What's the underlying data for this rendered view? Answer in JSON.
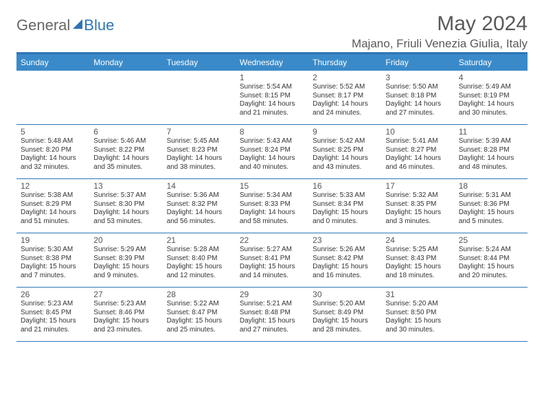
{
  "logo": {
    "part1": "General",
    "part2": "Blue"
  },
  "title": "May 2024",
  "location": "Majano, Friuli Venezia Giulia, Italy",
  "colors": {
    "header_bar": "#3a8ac9",
    "accent": "#2e75b6",
    "text": "#333333",
    "title_text": "#595959"
  },
  "day_names": [
    "Sunday",
    "Monday",
    "Tuesday",
    "Wednesday",
    "Thursday",
    "Friday",
    "Saturday"
  ],
  "weeks": [
    [
      null,
      null,
      null,
      {
        "n": "1",
        "sr": "5:54 AM",
        "ss": "8:15 PM",
        "dl": "14 hours and 21 minutes."
      },
      {
        "n": "2",
        "sr": "5:52 AM",
        "ss": "8:17 PM",
        "dl": "14 hours and 24 minutes."
      },
      {
        "n": "3",
        "sr": "5:50 AM",
        "ss": "8:18 PM",
        "dl": "14 hours and 27 minutes."
      },
      {
        "n": "4",
        "sr": "5:49 AM",
        "ss": "8:19 PM",
        "dl": "14 hours and 30 minutes."
      }
    ],
    [
      {
        "n": "5",
        "sr": "5:48 AM",
        "ss": "8:20 PM",
        "dl": "14 hours and 32 minutes."
      },
      {
        "n": "6",
        "sr": "5:46 AM",
        "ss": "8:22 PM",
        "dl": "14 hours and 35 minutes."
      },
      {
        "n": "7",
        "sr": "5:45 AM",
        "ss": "8:23 PM",
        "dl": "14 hours and 38 minutes."
      },
      {
        "n": "8",
        "sr": "5:43 AM",
        "ss": "8:24 PM",
        "dl": "14 hours and 40 minutes."
      },
      {
        "n": "9",
        "sr": "5:42 AM",
        "ss": "8:25 PM",
        "dl": "14 hours and 43 minutes."
      },
      {
        "n": "10",
        "sr": "5:41 AM",
        "ss": "8:27 PM",
        "dl": "14 hours and 46 minutes."
      },
      {
        "n": "11",
        "sr": "5:39 AM",
        "ss": "8:28 PM",
        "dl": "14 hours and 48 minutes."
      }
    ],
    [
      {
        "n": "12",
        "sr": "5:38 AM",
        "ss": "8:29 PM",
        "dl": "14 hours and 51 minutes."
      },
      {
        "n": "13",
        "sr": "5:37 AM",
        "ss": "8:30 PM",
        "dl": "14 hours and 53 minutes."
      },
      {
        "n": "14",
        "sr": "5:36 AM",
        "ss": "8:32 PM",
        "dl": "14 hours and 56 minutes."
      },
      {
        "n": "15",
        "sr": "5:34 AM",
        "ss": "8:33 PM",
        "dl": "14 hours and 58 minutes."
      },
      {
        "n": "16",
        "sr": "5:33 AM",
        "ss": "8:34 PM",
        "dl": "15 hours and 0 minutes."
      },
      {
        "n": "17",
        "sr": "5:32 AM",
        "ss": "8:35 PM",
        "dl": "15 hours and 3 minutes."
      },
      {
        "n": "18",
        "sr": "5:31 AM",
        "ss": "8:36 PM",
        "dl": "15 hours and 5 minutes."
      }
    ],
    [
      {
        "n": "19",
        "sr": "5:30 AM",
        "ss": "8:38 PM",
        "dl": "15 hours and 7 minutes."
      },
      {
        "n": "20",
        "sr": "5:29 AM",
        "ss": "8:39 PM",
        "dl": "15 hours and 9 minutes."
      },
      {
        "n": "21",
        "sr": "5:28 AM",
        "ss": "8:40 PM",
        "dl": "15 hours and 12 minutes."
      },
      {
        "n": "22",
        "sr": "5:27 AM",
        "ss": "8:41 PM",
        "dl": "15 hours and 14 minutes."
      },
      {
        "n": "23",
        "sr": "5:26 AM",
        "ss": "8:42 PM",
        "dl": "15 hours and 16 minutes."
      },
      {
        "n": "24",
        "sr": "5:25 AM",
        "ss": "8:43 PM",
        "dl": "15 hours and 18 minutes."
      },
      {
        "n": "25",
        "sr": "5:24 AM",
        "ss": "8:44 PM",
        "dl": "15 hours and 20 minutes."
      }
    ],
    [
      {
        "n": "26",
        "sr": "5:23 AM",
        "ss": "8:45 PM",
        "dl": "15 hours and 21 minutes."
      },
      {
        "n": "27",
        "sr": "5:23 AM",
        "ss": "8:46 PM",
        "dl": "15 hours and 23 minutes."
      },
      {
        "n": "28",
        "sr": "5:22 AM",
        "ss": "8:47 PM",
        "dl": "15 hours and 25 minutes."
      },
      {
        "n": "29",
        "sr": "5:21 AM",
        "ss": "8:48 PM",
        "dl": "15 hours and 27 minutes."
      },
      {
        "n": "30",
        "sr": "5:20 AM",
        "ss": "8:49 PM",
        "dl": "15 hours and 28 minutes."
      },
      {
        "n": "31",
        "sr": "5:20 AM",
        "ss": "8:50 PM",
        "dl": "15 hours and 30 minutes."
      },
      null
    ]
  ],
  "labels": {
    "sunrise": "Sunrise:",
    "sunset": "Sunset:",
    "daylight": "Daylight:"
  }
}
